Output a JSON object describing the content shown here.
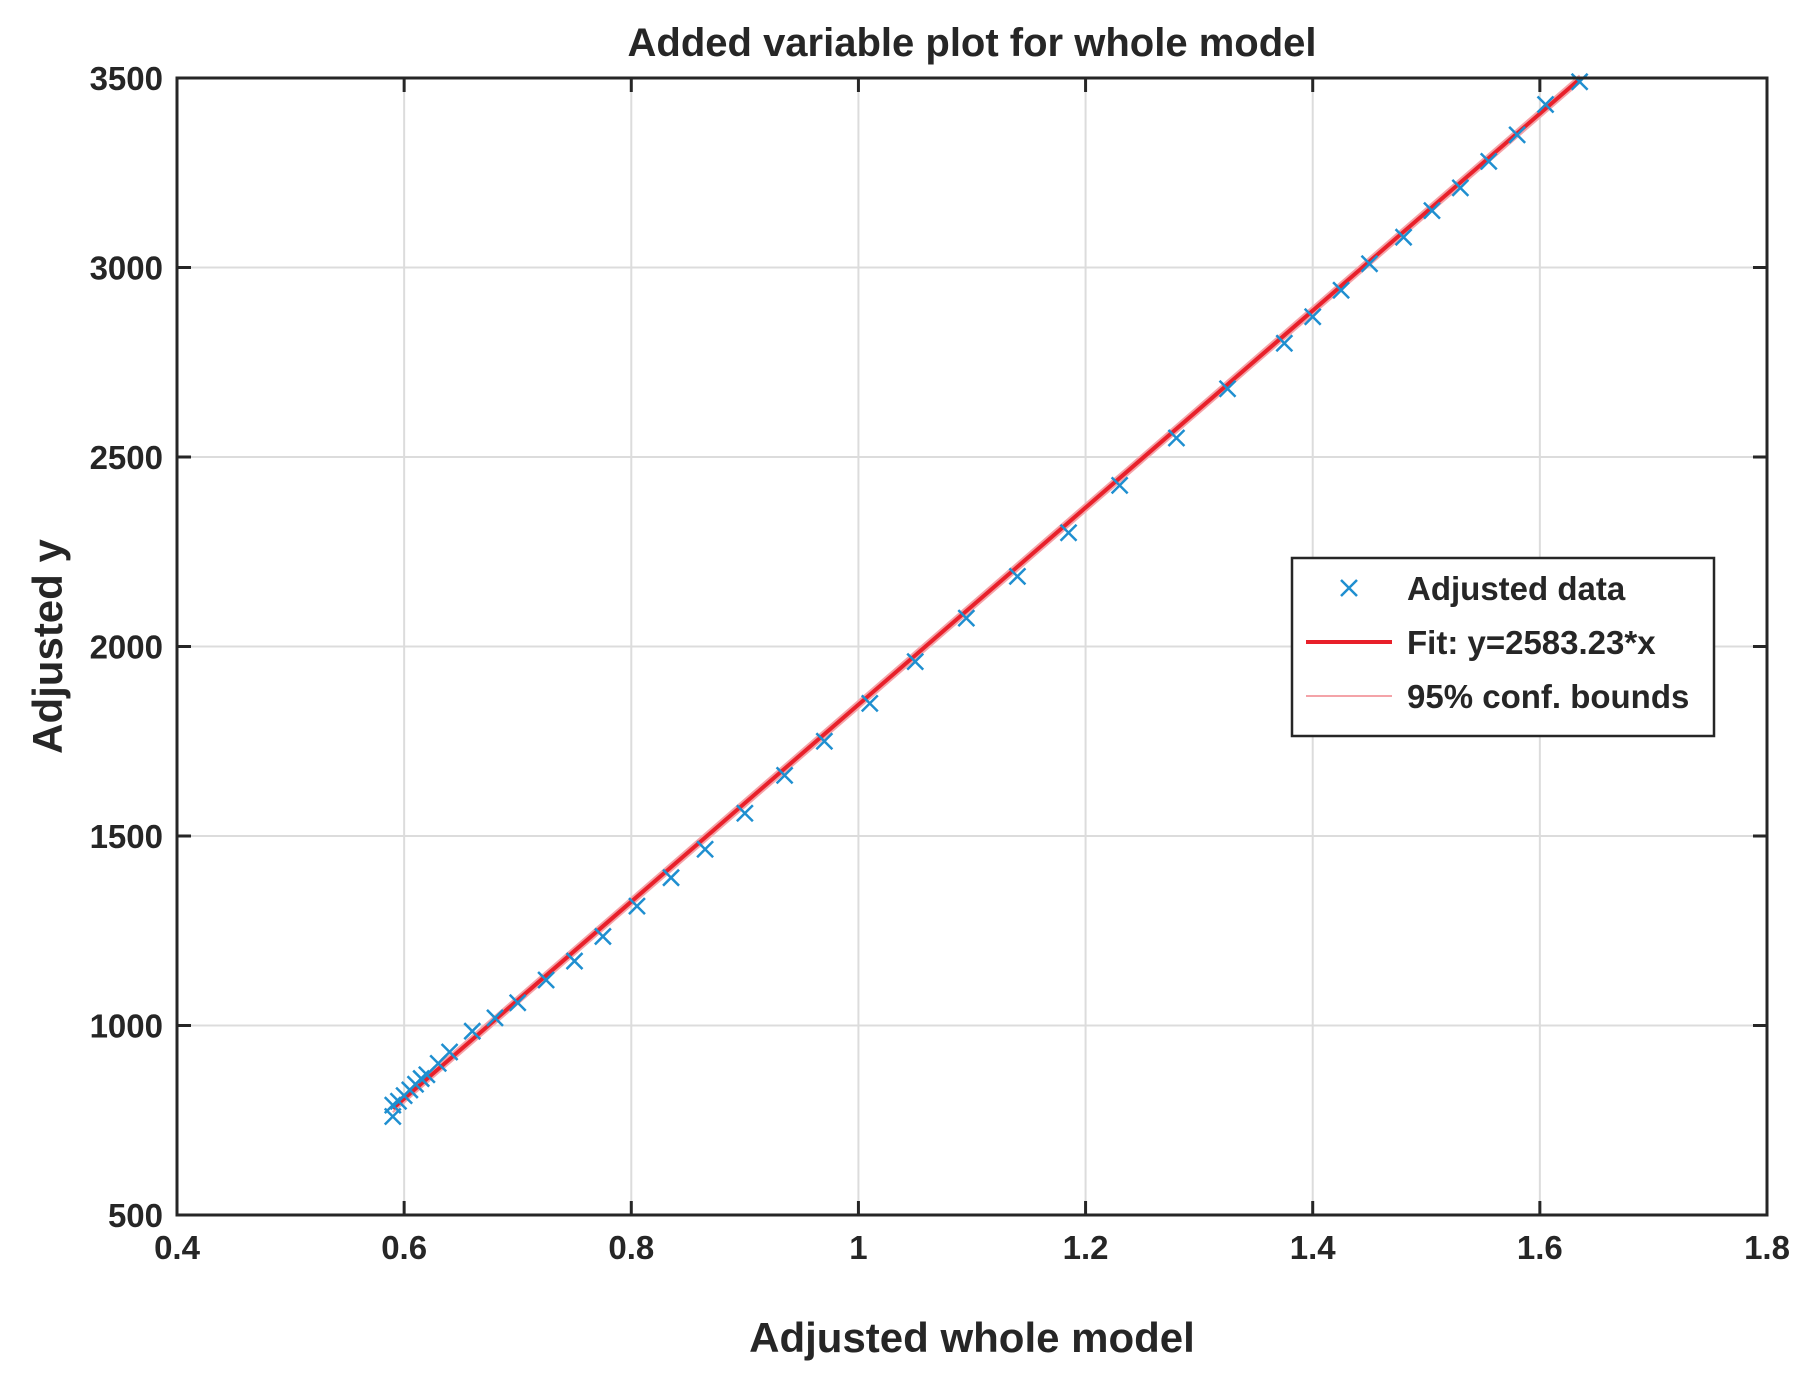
{
  "chart_data": {
    "type": "scatter",
    "title": "Added variable plot for whole model",
    "xlabel": "Adjusted whole model",
    "ylabel": "Adjusted y",
    "xlim": [
      0.4,
      1.8
    ],
    "ylim": [
      500,
      3500
    ],
    "xticks": [
      "0.4",
      "0.6",
      "0.8",
      "1",
      "1.2",
      "1.4",
      "1.6",
      "1.8"
    ],
    "yticks": [
      "500",
      "1000",
      "1500",
      "2000",
      "2500",
      "3000",
      "3500"
    ],
    "grid": true,
    "legend_position": "right",
    "colors": {
      "data": "#1f8fd0",
      "fit": "#e8202a",
      "bounds": "#f4a3a8",
      "axis": "#262626",
      "grid": "#dcdcdc"
    },
    "series": [
      {
        "name": "Adjusted data",
        "kind": "markers",
        "marker": "x",
        "x": [
          0.59,
          0.59,
          0.595,
          0.6,
          0.605,
          0.61,
          0.615,
          0.62,
          0.63,
          0.64,
          0.66,
          0.68,
          0.7,
          0.725,
          0.75,
          0.775,
          0.805,
          0.835,
          0.865,
          0.9,
          0.935,
          0.97,
          1.01,
          1.05,
          1.095,
          1.14,
          1.185,
          1.23,
          1.28,
          1.325,
          1.375,
          1.4,
          1.425,
          1.45,
          1.48,
          1.505,
          1.53,
          1.555,
          1.58,
          1.605,
          1.635
        ],
        "y": [
          760,
          790,
          800,
          815,
          830,
          845,
          860,
          870,
          900,
          930,
          985,
          1020,
          1060,
          1120,
          1170,
          1235,
          1315,
          1390,
          1465,
          1560,
          1660,
          1750,
          1850,
          1960,
          2075,
          2185,
          2300,
          2425,
          2550,
          2680,
          2800,
          2870,
          2940,
          3010,
          3080,
          3150,
          3210,
          3280,
          3350,
          3430,
          3490
        ]
      },
      {
        "name": "Fit: y=2583.23*x",
        "kind": "line",
        "x": [
          0.59,
          1.635
        ],
        "y": [
          781,
          3497
        ]
      },
      {
        "name": "95% conf. bounds",
        "kind": "bounds",
        "x": [
          0.59,
          1.635
        ],
        "y_lower": [
          771,
          3487
        ],
        "y_upper": [
          791,
          3507
        ]
      }
    ]
  }
}
